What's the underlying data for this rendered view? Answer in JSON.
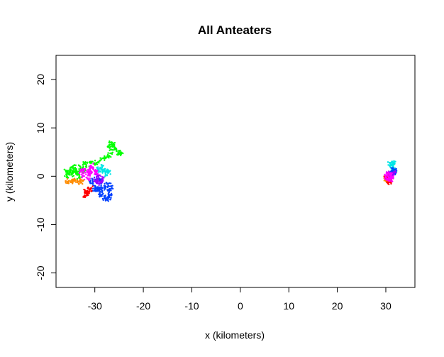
{
  "chart_data": {
    "type": "scatter",
    "title": "All Anteaters",
    "xlabel": "x (kilometers)",
    "ylabel": "y (kilometers)",
    "xlim": [
      -38,
      36
    ],
    "ylim": [
      -23,
      25
    ],
    "xticks": [
      -30,
      -20,
      -10,
      0,
      10,
      20,
      30
    ],
    "yticks": [
      -20,
      -10,
      0,
      10,
      20
    ],
    "xtick_labels": [
      "-30",
      "-20",
      "-10",
      "0",
      "10",
      "20",
      "30"
    ],
    "ytick_labels": [
      "-20",
      "-10",
      "0",
      "10",
      "20"
    ],
    "grid": false,
    "legend": "none",
    "series": [
      {
        "color": "#00ff00",
        "points": [
          [
            -36,
            1.2
          ],
          [
            -35.5,
            0.5
          ],
          [
            -35,
            1.8
          ],
          [
            -34.5,
            0.8
          ],
          [
            -34,
            1.5
          ],
          [
            -33.5,
            0.3
          ],
          [
            -33,
            2.0
          ],
          [
            -32.5,
            1.0
          ],
          [
            -32,
            2.5
          ],
          [
            -31,
            2.8
          ],
          [
            -30,
            2.5
          ],
          [
            -29,
            3.2
          ],
          [
            -28,
            3.8
          ],
          [
            -27,
            4.2
          ],
          [
            -26.5,
            5.5
          ],
          [
            -27,
            6.5
          ],
          [
            -26.5,
            7.0
          ],
          [
            -26,
            6.2
          ],
          [
            -25.5,
            5.2
          ],
          [
            -25,
            4.6
          ],
          [
            -24.5,
            4.9
          ],
          [
            -35.8,
            -0.2
          ],
          [
            -34.2,
            2.3
          ],
          [
            -33.2,
            -0.4
          ]
        ]
      },
      {
        "color": "#0040ff",
        "points": [
          [
            -31,
            -1
          ],
          [
            -30,
            -2
          ],
          [
            -29,
            -3.5
          ],
          [
            -28,
            -4.5
          ],
          [
            -27,
            -4
          ],
          [
            -26.5,
            -2.5
          ],
          [
            -27.5,
            -1.5
          ],
          [
            -28.5,
            -3
          ],
          [
            -29.5,
            -2.5
          ],
          [
            -30.5,
            -3
          ],
          [
            -28,
            -2
          ],
          [
            -27,
            -3
          ],
          [
            -26.8,
            -4.8
          ],
          [
            -29,
            -4.2
          ],
          [
            -28.5,
            -1
          ],
          [
            -29.5,
            -0.5
          ]
        ]
      },
      {
        "color": "#00e5e5",
        "points": [
          [
            -29,
            1
          ],
          [
            -28,
            1.5
          ],
          [
            -27,
            1
          ],
          [
            -27.5,
            0.2
          ],
          [
            -28.5,
            2
          ],
          [
            -29.5,
            1.8
          ]
        ]
      },
      {
        "color": "#ff8c00",
        "points": [
          [
            -36,
            -1.0
          ],
          [
            -35,
            -1.2
          ],
          [
            -34,
            -0.8
          ],
          [
            -33,
            -1.3
          ],
          [
            -32.5,
            -1.0
          ]
        ]
      },
      {
        "color": "#ff0000",
        "points": [
          [
            -32,
            -3
          ],
          [
            -31.5,
            -3.5
          ],
          [
            -31,
            -2.8
          ],
          [
            -32.2,
            -4.2
          ],
          [
            -30.8,
            -2.5
          ]
        ]
      },
      {
        "color": "#9900ff",
        "points": [
          [
            -30,
            -1
          ],
          [
            -29,
            -1.5
          ],
          [
            -28.5,
            -0.5
          ],
          [
            -29.5,
            0
          ],
          [
            -28.8,
            -1.2
          ]
        ]
      },
      {
        "color": "#ff00ff",
        "points": [
          [
            -33,
            1
          ],
          [
            -32,
            1.5
          ],
          [
            -31,
            0.5
          ],
          [
            -30.5,
            1.8
          ],
          [
            -32.5,
            0
          ],
          [
            -31.5,
            -0.5
          ],
          [
            -30,
            1.2
          ],
          [
            -29.5,
            0.5
          ],
          [
            -30.8,
            2.2
          ],
          [
            -31.2,
            0.8
          ]
        ]
      },
      {
        "color": "#00e5e5",
        "points": [
          [
            31,
            2.5
          ],
          [
            31.5,
            2
          ],
          [
            32,
            1.2
          ],
          [
            31.2,
            1.5
          ],
          [
            30.8,
            2.8
          ],
          [
            31.8,
            2.6
          ]
        ]
      },
      {
        "color": "#0040ff",
        "points": [
          [
            30.8,
            0.8
          ],
          [
            31.5,
            0.5
          ],
          [
            32,
            1.0
          ],
          [
            31,
            0.2
          ],
          [
            31.8,
            1.4
          ]
        ]
      },
      {
        "color": "#9900ff",
        "points": [
          [
            30.5,
            0.5
          ],
          [
            31,
            0
          ],
          [
            31.8,
            0.8
          ]
        ]
      },
      {
        "color": "#ff8c00",
        "points": [
          [
            30,
            -0.8
          ],
          [
            30.5,
            -1.2
          ],
          [
            29.8,
            -0.3
          ]
        ]
      },
      {
        "color": "#ff0000",
        "points": [
          [
            30,
            -0.5
          ],
          [
            31,
            -1
          ],
          [
            30.5,
            -1.3
          ],
          [
            30.2,
            0.1
          ]
        ]
      },
      {
        "color": "#ff00ff",
        "points": [
          [
            30,
            0
          ],
          [
            30.5,
            -0.5
          ],
          [
            31,
            0.5
          ],
          [
            30.2,
            0.6
          ],
          [
            31.2,
            -0.3
          ],
          [
            30.8,
            -0.8
          ]
        ]
      }
    ]
  }
}
